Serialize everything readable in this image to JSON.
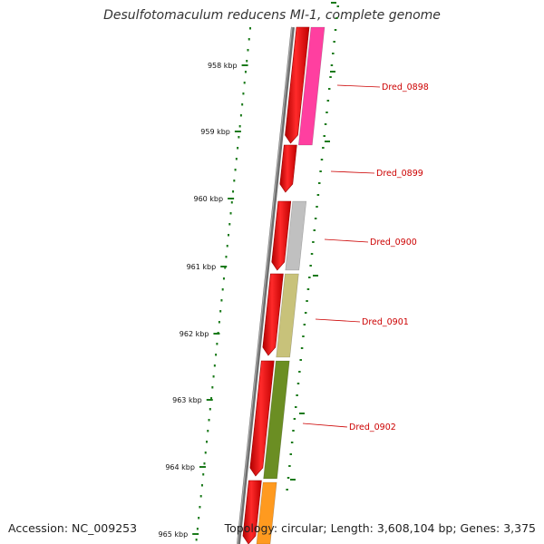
{
  "title": "Desulfotomaculum reducens MI-1, complete genome",
  "footer": {
    "accession": "Accession: NC_009253",
    "stats": "Topology: circular; Length: 3,608,104 bp; Genes: 3,375"
  },
  "scale_labels": [
    "958 kbp",
    "959 kbp",
    "960 kbp",
    "961 kbp",
    "962 kbp",
    "963 kbp",
    "964 kbp",
    "965 kbp"
  ],
  "genes": [
    {
      "name": "Dred_0898",
      "color": "#ff3fa0"
    },
    {
      "name": "Dred_0899",
      "color": null
    },
    {
      "name": "Dred_0900",
      "color": "#c0c0c0"
    },
    {
      "name": "Dred_0901",
      "color": "#c8c27a"
    },
    {
      "name": "Dred_0902",
      "color": "#6b8e23"
    },
    {
      "name": "",
      "color": "#ff9a1f"
    }
  ],
  "colors": {
    "cds_forward": "#ff0000",
    "tick": "#1a7a1a",
    "backbone": "#6e6e6e",
    "label": "#cc0000"
  }
}
